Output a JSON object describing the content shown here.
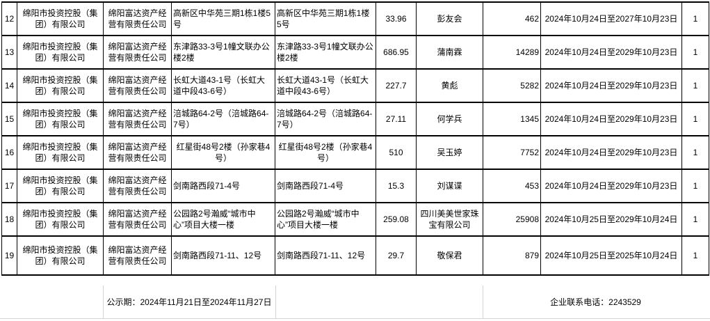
{
  "colors": {
    "background": "#ffffff",
    "text": "#000000",
    "table_border": "#000000",
    "gridline": "#d4d4d4"
  },
  "table": {
    "rows": [
      {
        "seq": "12",
        "owner": "绵阳市投资控股（集团）有限公司",
        "operator": "绵阳富达资产经营有限责任公司",
        "address": "高新区中华苑三期1栋1楼5号",
        "address2": "高新区中华苑三期1栋1楼5号",
        "area": "33.96",
        "tenant": "彭友会",
        "amount": "462",
        "period": "2024年10月24日至2027年10月23日",
        "count": "1",
        "addr_align": "left"
      },
      {
        "seq": "13",
        "owner": "绵阳市投资控股（集团）有限公司",
        "operator": "绵阳富达资产经营有限责任公司",
        "address": "东津路33-3号1幢文联办公楼2楼",
        "address2": "东津路33-3号1幢文联办公楼2楼",
        "area": "686.95",
        "tenant": "蒲南霖",
        "amount": "14289",
        "period": "2024年10月24日至2029年10月23日",
        "count": "1",
        "addr_align": "left"
      },
      {
        "seq": "14",
        "owner": "绵阳市投资控股（集团）有限公司",
        "operator": "绵阳富达资产经营有限责任公司",
        "address": "长虹大道43-1号（长虹大道中段43-6号）",
        "address2": "长虹大道43-1号（长虹大道中段43-6号）",
        "area": "227.7",
        "tenant": "黄彪",
        "amount": "5282",
        "period": "2024年10月24日至2029年10月23日",
        "count": "1",
        "addr_align": "left"
      },
      {
        "seq": "15",
        "owner": "绵阳市投资控股（集团）有限公司",
        "operator": "绵阳富达资产经营有限责任公司",
        "address": "涪城路64-2号（涪城路64-7号）",
        "address2": "涪城路64-2号（涪城路64-7号）",
        "area": "27.11",
        "tenant": "何学兵",
        "amount": "1345",
        "period": "2024年10月24日至2029年10月23日",
        "count": "1",
        "addr_align": "left"
      },
      {
        "seq": "16",
        "owner": "绵阳市投资控股（集团）有限公司",
        "operator": "绵阳富达资产经营有限责任公司",
        "address": "红星街48号2楼（孙家巷4号）",
        "address2": "红星街48号2楼（孙家巷4号）",
        "area": "510",
        "tenant": "吴玉婷",
        "amount": "7752",
        "period": "2024年10月24日至2029年10月23日",
        "count": "1",
        "addr_align": "center"
      },
      {
        "seq": "17",
        "owner": "绵阳市投资控股（集团）有限公司",
        "operator": "绵阳富达资产经营有限责任公司",
        "address": "剑南路西段71-4号",
        "address2": "剑南路西段71-4号",
        "area": "15.3",
        "tenant": "刘谋谍",
        "amount": "453",
        "period": "2024年10月24日至2029年10月23日",
        "count": "1",
        "addr_align": "left"
      },
      {
        "seq": "18",
        "owner": "绵阳市投资控股（集团）有限公司",
        "operator": "绵阳富达资产经营有限责任公司",
        "address": "公园路2号瀚威“城市中心”项目大楼一楼",
        "address2": "公园路2号瀚威“城市中心”项目大楼一楼",
        "area": "259.08",
        "tenant": "四川美美世家珠宝有限公司",
        "amount": "25908",
        "period": "2024年10月25日至2029年10月24日",
        "count": "1",
        "addr_align": "left"
      },
      {
        "seq": "19",
        "owner": "绵阳市投资控股（集团）有限公司",
        "operator": "绵阳富达资产经营有限责任公司",
        "address": "剑南路西段71-11、12号",
        "address2": "剑南路西段71-11、12号",
        "area": "29.7",
        "tenant": "敬保君",
        "amount": "879",
        "period": "2024年10月25日至2025年10月24日",
        "count": "1",
        "addr_align": "left",
        "tall": true
      }
    ],
    "footer": {
      "publicity_period": "公示期：2024年11月21日至2024年11月27日",
      "contact_phone": "企业联系电话：2243529"
    }
  }
}
